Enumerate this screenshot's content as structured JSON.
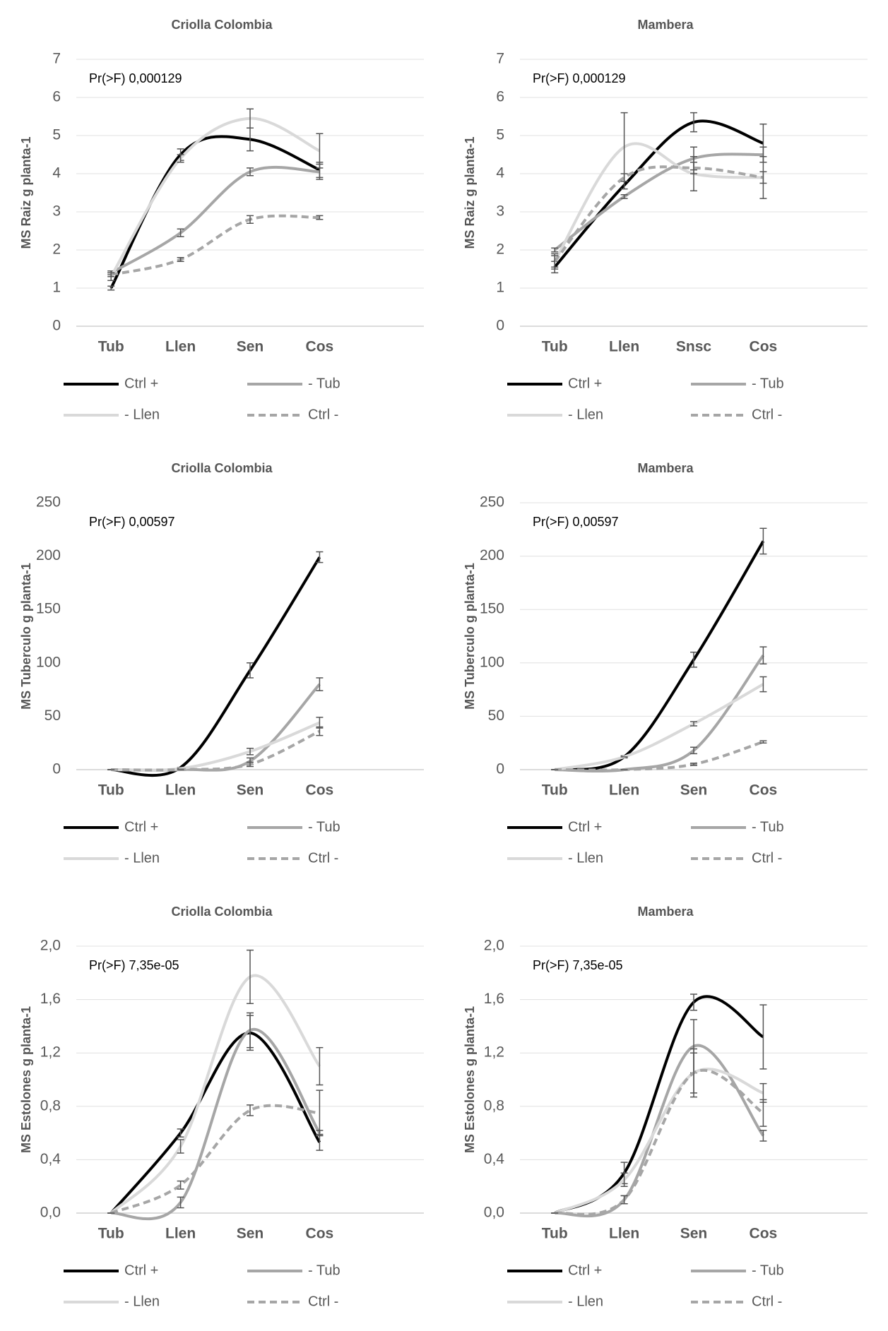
{
  "chart_data": [
    {
      "type": "line",
      "title": "Criolla Colombia",
      "y_label": "MS Raiz g planta-1",
      "annotation": "Pr(>F) 0,000129",
      "categories": [
        "Tub",
        "Llen",
        "Sen",
        "Cos"
      ],
      "ylim": [
        0,
        7
      ],
      "yticks": [
        0,
        1,
        2,
        3,
        4,
        5,
        6,
        7
      ],
      "grid": true,
      "series": [
        {
          "name": "Ctrl +",
          "color": "#000000",
          "dashed": false,
          "values": [
            1.0,
            4.5,
            4.9,
            4.1
          ],
          "errors": [
            0.05,
            0.15,
            0.3,
            0.2
          ]
        },
        {
          "name": "- Tub",
          "color": "#a6a6a6",
          "dashed": false,
          "values": [
            1.4,
            2.45,
            4.05,
            4.05
          ],
          "errors": [
            0.05,
            0.1,
            0.1,
            0.2
          ]
        },
        {
          "name": "- Llen",
          "color": "#d9d9d9",
          "dashed": false,
          "values": [
            1.3,
            4.4,
            5.45,
            4.6
          ],
          "errors": [
            0.1,
            0.1,
            0.25,
            0.45
          ]
        },
        {
          "name": "Ctrl -",
          "color": "#a6a6a6",
          "dashed": true,
          "values": [
            1.35,
            1.75,
            2.8,
            2.85
          ],
          "errors": [
            0.05,
            0.05,
            0.1,
            0.05
          ]
        }
      ]
    },
    {
      "type": "line",
      "title": "Mambera",
      "y_label": "MS Raiz g planta-1",
      "annotation": "Pr(>F) 0,000129",
      "categories": [
        "Tub",
        "Llen",
        "Snsc",
        "Cos"
      ],
      "ylim": [
        0,
        7
      ],
      "yticks": [
        0,
        1,
        2,
        3,
        4,
        5,
        6,
        7
      ],
      "grid": true,
      "series": [
        {
          "name": "Ctrl +",
          "color": "#000000",
          "dashed": false,
          "values": [
            1.55,
            3.7,
            5.35,
            4.8
          ],
          "errors": [
            0.15,
            0.1,
            0.25,
            0.5
          ]
        },
        {
          "name": "- Tub",
          "color": "#a6a6a6",
          "dashed": false,
          "values": [
            2.0,
            3.4,
            4.4,
            4.5
          ],
          "errors": [
            0.05,
            0.05,
            0.3,
            0.2
          ]
        },
        {
          "name": "- Llen",
          "color": "#d9d9d9",
          "dashed": false,
          "values": [
            1.7,
            4.7,
            4.0,
            3.9
          ],
          "errors": [
            0.2,
            0.9,
            0.45,
            0.55
          ]
        },
        {
          "name": "Ctrl -",
          "color": "#a6a6a6",
          "dashed": true,
          "values": [
            1.7,
            3.9,
            4.15,
            3.9
          ],
          "errors": [
            0.15,
            0.1,
            0.15,
            0.15
          ]
        }
      ]
    },
    {
      "type": "line",
      "title": "Criolla Colombia",
      "y_label": "MS Tuberculo  g planta-1",
      "annotation": "Pr(>F) 0,00597",
      "categories": [
        "Tub",
        "Llen",
        "Sen",
        "Cos"
      ],
      "ylim": [
        0,
        250
      ],
      "yticks": [
        0,
        50,
        100,
        150,
        200,
        250
      ],
      "grid": false,
      "series": [
        {
          "name": "Ctrl +",
          "color": "#000000",
          "dashed": false,
          "values": [
            0,
            2,
            93,
            199
          ],
          "errors": [
            0,
            0,
            7,
            5
          ]
        },
        {
          "name": "- Tub",
          "color": "#a6a6a6",
          "dashed": false,
          "values": [
            0,
            0,
            8,
            80
          ],
          "errors": [
            0,
            0,
            3,
            6
          ]
        },
        {
          "name": "- Llen",
          "color": "#d9d9d9",
          "dashed": false,
          "values": [
            0,
            1,
            17,
            44
          ],
          "errors": [
            0,
            0,
            3,
            5
          ]
        },
        {
          "name": "Ctrl -",
          "color": "#a6a6a6",
          "dashed": true,
          "values": [
            0,
            0,
            5,
            36
          ],
          "errors": [
            0,
            0,
            2,
            4
          ]
        }
      ]
    },
    {
      "type": "line",
      "title": "Mambera",
      "y_label": "MS Tuberculo  g planta-1",
      "annotation": "Pr(>F) 0,00597",
      "categories": [
        "Tub",
        "Llen",
        "Sen",
        "Cos"
      ],
      "ylim": [
        0,
        250
      ],
      "yticks": [
        0,
        50,
        100,
        150,
        200,
        250
      ],
      "grid": true,
      "series": [
        {
          "name": "Ctrl +",
          "color": "#000000",
          "dashed": false,
          "values": [
            0,
            12,
            103,
            214
          ],
          "errors": [
            0,
            1,
            7,
            12
          ]
        },
        {
          "name": "- Tub",
          "color": "#a6a6a6",
          "dashed": false,
          "values": [
            0,
            0,
            18,
            107
          ],
          "errors": [
            0,
            0,
            3,
            8
          ]
        },
        {
          "name": "- Llen",
          "color": "#d9d9d9",
          "dashed": false,
          "values": [
            0,
            12,
            43,
            80
          ],
          "errors": [
            0,
            0,
            2,
            7
          ]
        },
        {
          "name": "Ctrl -",
          "color": "#a6a6a6",
          "dashed": true,
          "values": [
            0,
            0,
            5,
            26
          ],
          "errors": [
            0,
            0,
            1,
            1
          ]
        }
      ]
    },
    {
      "type": "line",
      "title": "Criolla Colombia",
      "y_label": "MS Estolones  g planta-1",
      "annotation": "Pr(>F) 7,35e-05",
      "categories": [
        "Tub",
        "Llen",
        "Sen",
        "Cos"
      ],
      "ylim": [
        0,
        2
      ],
      "yticks": [
        {
          "value": 0,
          "label": "0,0"
        },
        {
          "value": 0.4,
          "label": "0,4"
        },
        {
          "value": 0.8,
          "label": "0,8"
        },
        {
          "value": 1.2,
          "label": "1,2"
        },
        {
          "value": 1.6,
          "label": "1,6"
        },
        {
          "value": 2,
          "label": "2,0"
        }
      ],
      "grid": true,
      "series": [
        {
          "name": "Ctrl +",
          "color": "#000000",
          "dashed": false,
          "values": [
            0,
            0.6,
            1.35,
            0.53
          ],
          "errors": [
            0,
            0.03,
            0.13,
            0.06
          ]
        },
        {
          "name": "- Tub",
          "color": "#a6a6a6",
          "dashed": false,
          "values": [
            0,
            0.08,
            1.37,
            0.6
          ],
          "errors": [
            0,
            0.04,
            0.13,
            0.02
          ]
        },
        {
          "name": "- Llen",
          "color": "#d9d9d9",
          "dashed": false,
          "values": [
            0,
            0.5,
            1.77,
            1.1
          ],
          "errors": [
            0,
            0.05,
            0.2,
            0.14
          ]
        },
        {
          "name": "Ctrl -",
          "color": "#a6a6a6",
          "dashed": true,
          "values": [
            0,
            0.21,
            0.77,
            0.75
          ],
          "errors": [
            0,
            0.03,
            0.04,
            0.17
          ]
        }
      ]
    },
    {
      "type": "line",
      "title": "Mambera",
      "y_label": "MS Estolones  g planta-1",
      "annotation": "Pr(>F) 7,35e-05",
      "categories": [
        "Tub",
        "Llen",
        "Sen",
        "Cos"
      ],
      "ylim": [
        0,
        2
      ],
      "yticks": [
        {
          "value": 0,
          "label": "0,0"
        },
        {
          "value": 0.4,
          "label": "0,4"
        },
        {
          "value": 0.8,
          "label": "0,8"
        },
        {
          "value": 1.2,
          "label": "1,2"
        },
        {
          "value": 1.6,
          "label": "1,6"
        },
        {
          "value": 2,
          "label": "2,0"
        }
      ],
      "grid": true,
      "series": [
        {
          "name": "Ctrl +",
          "color": "#000000",
          "dashed": false,
          "values": [
            0,
            0.3,
            1.58,
            1.32
          ],
          "errors": [
            0,
            0.08,
            0.06,
            0.24
          ]
        },
        {
          "name": "- Tub",
          "color": "#a6a6a6",
          "dashed": false,
          "values": [
            0,
            0.1,
            1.25,
            0.58
          ],
          "errors": [
            0,
            0.03,
            0.2,
            0.04
          ]
        },
        {
          "name": "- Llen",
          "color": "#d9d9d9",
          "dashed": false,
          "values": [
            0,
            0.25,
            1.05,
            0.9
          ],
          "errors": [
            0,
            0.05,
            0.18,
            0.07
          ]
        },
        {
          "name": "Ctrl -",
          "color": "#a6a6a6",
          "dashed": true,
          "values": [
            0,
            0.1,
            1.05,
            0.75
          ],
          "errors": [
            0,
            0.03,
            0.15,
            0.1
          ]
        }
      ]
    }
  ]
}
